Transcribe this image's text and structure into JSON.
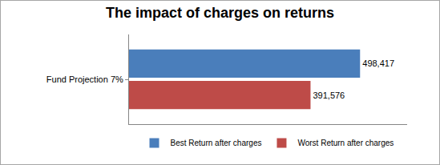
{
  "chart_data": {
    "type": "bar",
    "title": "The impact of charges on returns",
    "orientation": "horizontal",
    "categories": [
      "Fund Projection 7%"
    ],
    "series": [
      {
        "name": "Best Return after charges",
        "color": "#4a7ebb",
        "values": [
          498417
        ],
        "value_labels": [
          "498,417"
        ]
      },
      {
        "name": "Worst Return after charges",
        "color": "#be4b48",
        "values": [
          391576
        ],
        "value_labels": [
          "391,576"
        ]
      }
    ],
    "xlim": [
      0,
      600000
    ],
    "grid": false,
    "legend": "bottom",
    "data_labels": true,
    "tick_labels": "y"
  }
}
